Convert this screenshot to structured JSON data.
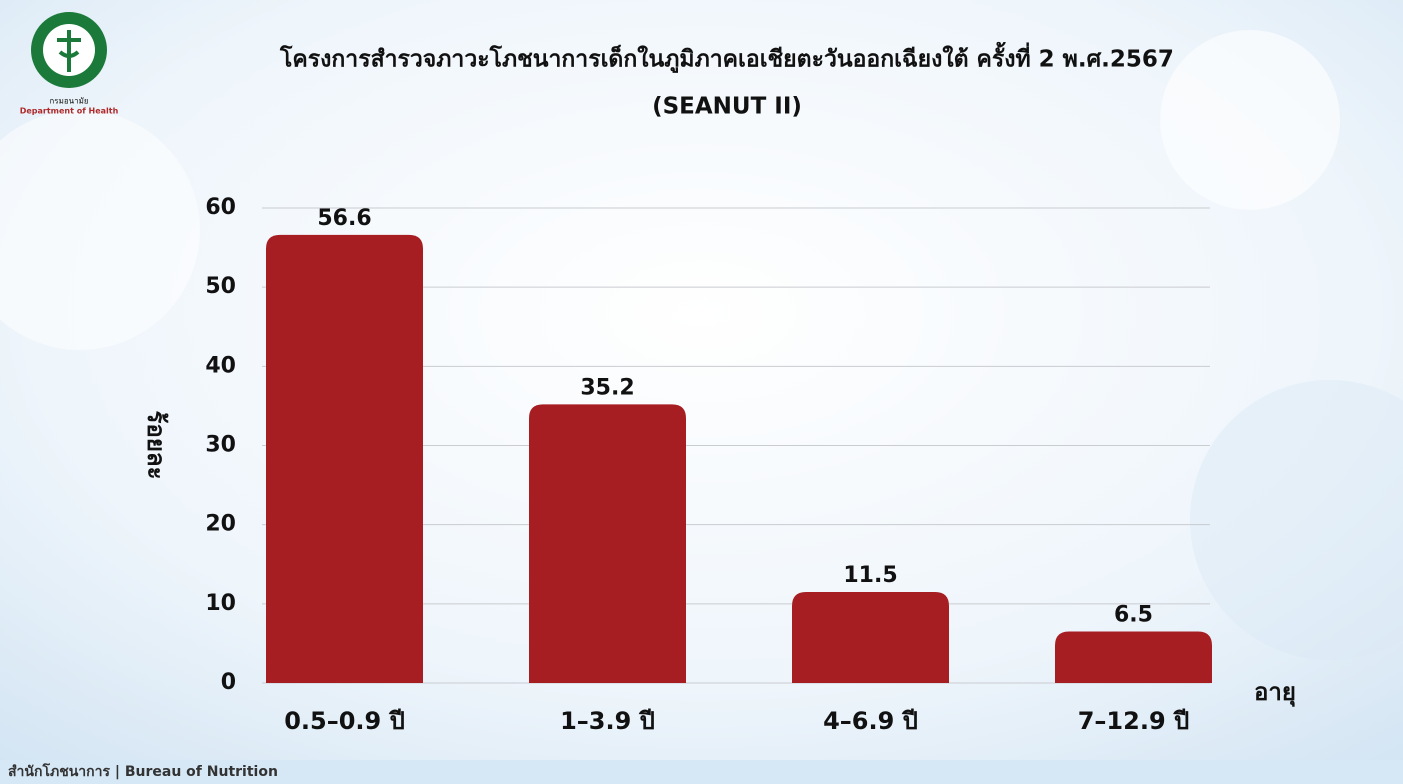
{
  "chart_data": {
    "type": "bar",
    "title": "โครงการสำรวจภาวะโภชนาการเด็กในภูมิภาคเอเชียตะวันออกเฉียงใต้ ครั้งที่ 2 พ.ศ.2567",
    "subtitle": "(SEANUT II)",
    "y_label": "ร้อยละ",
    "x_label": "อายุ",
    "categories": [
      "0.5–0.9 ปี",
      "1–3.9 ปี",
      "4–6.9 ปี",
      "7–12.9 ปี"
    ],
    "values": [
      56.6,
      35.2,
      11.5,
      6.5
    ],
    "color": "#a61e22",
    "ylim": [
      0,
      60
    ],
    "yticks": [
      0,
      10,
      20,
      30,
      40,
      50,
      60
    ],
    "grid": true
  },
  "logo": {
    "thai": "กรมอนามัย",
    "english": "Department of Health"
  },
  "footer": "สำนักโภชนาการ  | Bureau of Nutrition"
}
